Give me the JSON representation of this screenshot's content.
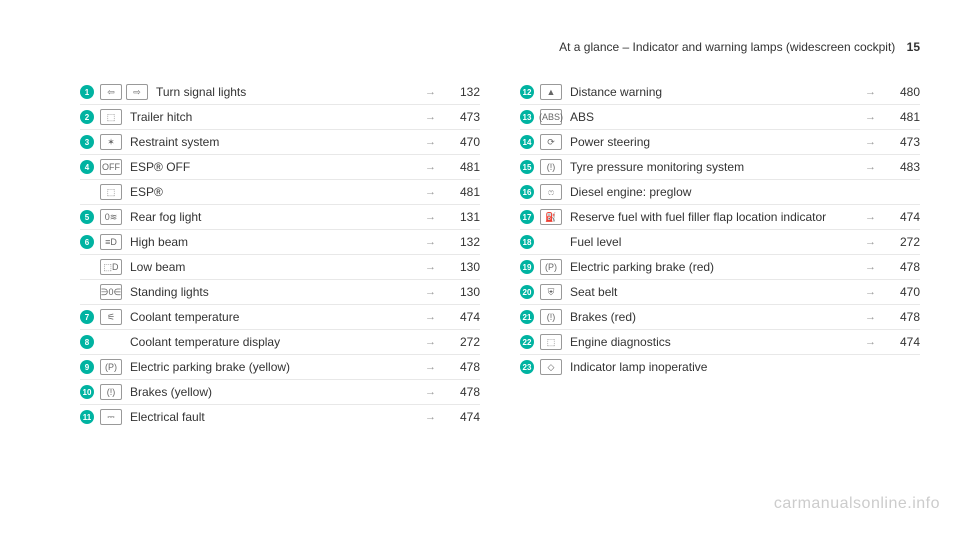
{
  "header": {
    "text": "At a glance – Indicator and warning lamps (widescreen cockpit)",
    "page_number": "15"
  },
  "arrow_glyph": "→",
  "watermark": "carmanualsonline.info",
  "columns": [
    [
      {
        "num": "1",
        "icons": [
          "⇦",
          "⇨"
        ],
        "label": "Turn signal lights",
        "page": "132"
      },
      {
        "num": "2",
        "icons": [
          "⬚"
        ],
        "label": "Trailer hitch",
        "page": "473"
      },
      {
        "num": "3",
        "icons": [
          "✶"
        ],
        "label": "Restraint system",
        "page": "470"
      },
      {
        "num": "4",
        "icons": [
          "OFF"
        ],
        "label": "ESP® OFF",
        "page": "481"
      },
      {
        "num": "",
        "icons": [
          "⬚"
        ],
        "label": "ESP®",
        "page": "481"
      },
      {
        "num": "5",
        "icons": [
          "0≋"
        ],
        "label": "Rear fog light",
        "page": "131"
      },
      {
        "num": "6",
        "icons": [
          "≡D"
        ],
        "label": "High beam",
        "page": "132"
      },
      {
        "num": "",
        "icons": [
          "⬚D"
        ],
        "label": "Low beam",
        "page": "130"
      },
      {
        "num": "",
        "icons": [
          "∋0∈"
        ],
        "label": "Standing lights",
        "page": "130"
      },
      {
        "num": "7",
        "icons": [
          "⚟"
        ],
        "label": "Coolant temperature",
        "page": "474"
      },
      {
        "num": "8",
        "icons": [],
        "label": "Coolant temperature display",
        "page": "272"
      },
      {
        "num": "9",
        "icons": [
          "(P)"
        ],
        "label": "Electric parking brake (yellow)",
        "page": "478"
      },
      {
        "num": "10",
        "icons": [
          "(!)"
        ],
        "label": "Brakes (yellow)",
        "page": "478"
      },
      {
        "num": "11",
        "icons": [
          "⎓"
        ],
        "label": "Electrical fault",
        "page": "474"
      }
    ],
    [
      {
        "num": "12",
        "icons": [
          "▲"
        ],
        "label": "Distance warning",
        "page": "480"
      },
      {
        "num": "13",
        "icons": [
          "(ABS)"
        ],
        "label": "ABS",
        "page": "481"
      },
      {
        "num": "14",
        "icons": [
          "⟳"
        ],
        "label": "Power steering",
        "page": "473"
      },
      {
        "num": "15",
        "icons": [
          "(!)"
        ],
        "label": "Tyre pressure monitoring system",
        "page": "483"
      },
      {
        "num": "16",
        "icons": [
          "ෆ"
        ],
        "label": "Diesel engine: preglow",
        "page": ""
      },
      {
        "num": "17",
        "icons": [
          "⛽"
        ],
        "label": "Reserve fuel with fuel filler flap location indicator",
        "page": "474"
      },
      {
        "num": "18",
        "icons": [],
        "label": "Fuel level",
        "page": "272"
      },
      {
        "num": "19",
        "icons": [
          "(P)"
        ],
        "label": "Electric parking brake (red)",
        "page": "478"
      },
      {
        "num": "20",
        "icons": [
          "⛨"
        ],
        "label": "Seat belt",
        "page": "470"
      },
      {
        "num": "21",
        "icons": [
          "(!)"
        ],
        "label": "Brakes (red)",
        "page": "478"
      },
      {
        "num": "22",
        "icons": [
          "⬚"
        ],
        "label": "Engine diagnostics",
        "page": "474"
      },
      {
        "num": "23",
        "icons": [
          "◇"
        ],
        "label": "Indicator lamp inoperative",
        "page": ""
      }
    ]
  ]
}
